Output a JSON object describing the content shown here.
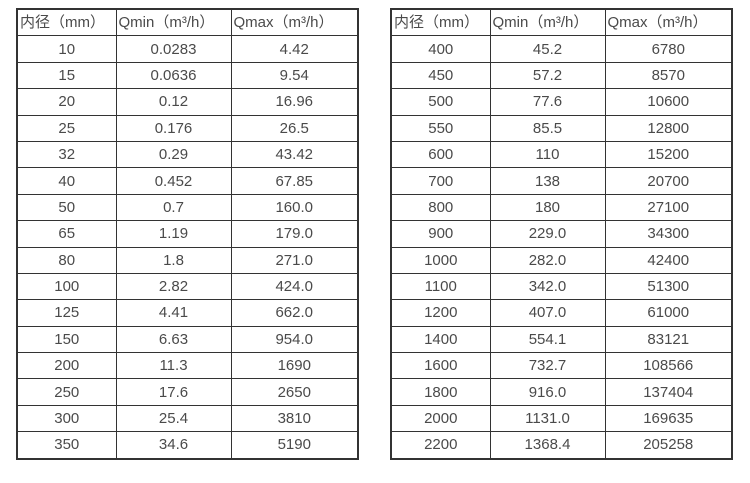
{
  "page": {
    "background_color": "#ffffff",
    "text_color": "#4a4a4a",
    "border_color": "#333333"
  },
  "tables": [
    {
      "name": "flow-table-small-diameters",
      "columns": [
        "内径（mm）",
        "Qmin（m³/h）",
        "Qmax（m³/h）"
      ],
      "rows": [
        [
          "10",
          "0.0283",
          "4.42"
        ],
        [
          "15",
          "0.0636",
          "9.54"
        ],
        [
          "20",
          "0.12",
          "16.96"
        ],
        [
          "25",
          "0.176",
          "26.5"
        ],
        [
          "32",
          "0.29",
          "43.42"
        ],
        [
          "40",
          "0.452",
          "67.85"
        ],
        [
          "50",
          "0.7",
          "160.0"
        ],
        [
          "65",
          "1.19",
          "179.0"
        ],
        [
          "80",
          "1.8",
          "271.0"
        ],
        [
          "100",
          "2.82",
          "424.0"
        ],
        [
          "125",
          "4.41",
          "662.0"
        ],
        [
          "150",
          "6.63",
          "954.0"
        ],
        [
          "200",
          "11.3",
          "1690"
        ],
        [
          "250",
          "17.6",
          "2650"
        ],
        [
          "300",
          "25.4",
          "3810"
        ],
        [
          "350",
          "34.6",
          "5190"
        ]
      ]
    },
    {
      "name": "flow-table-large-diameters",
      "columns": [
        "内径（mm）",
        "Qmin（m³/h）",
        "Qmax（m³/h）"
      ],
      "rows": [
        [
          "400",
          "45.2",
          "6780"
        ],
        [
          "450",
          "57.2",
          "8570"
        ],
        [
          "500",
          "77.6",
          "10600"
        ],
        [
          "550",
          "85.5",
          "12800"
        ],
        [
          "600",
          "110",
          "15200"
        ],
        [
          "700",
          "138",
          "20700"
        ],
        [
          "800",
          "180",
          "27100"
        ],
        [
          "900",
          "229.0",
          "34300"
        ],
        [
          "1000",
          "282.0",
          "42400"
        ],
        [
          "1100",
          "342.0",
          "51300"
        ],
        [
          "1200",
          "407.0",
          "61000"
        ],
        [
          "1400",
          "554.1",
          "83121"
        ],
        [
          "1600",
          "732.7",
          "108566"
        ],
        [
          "1800",
          "916.0",
          "137404"
        ],
        [
          "2000",
          "1131.0",
          "169635"
        ],
        [
          "2200",
          "1368.4",
          "205258"
        ]
      ]
    }
  ]
}
